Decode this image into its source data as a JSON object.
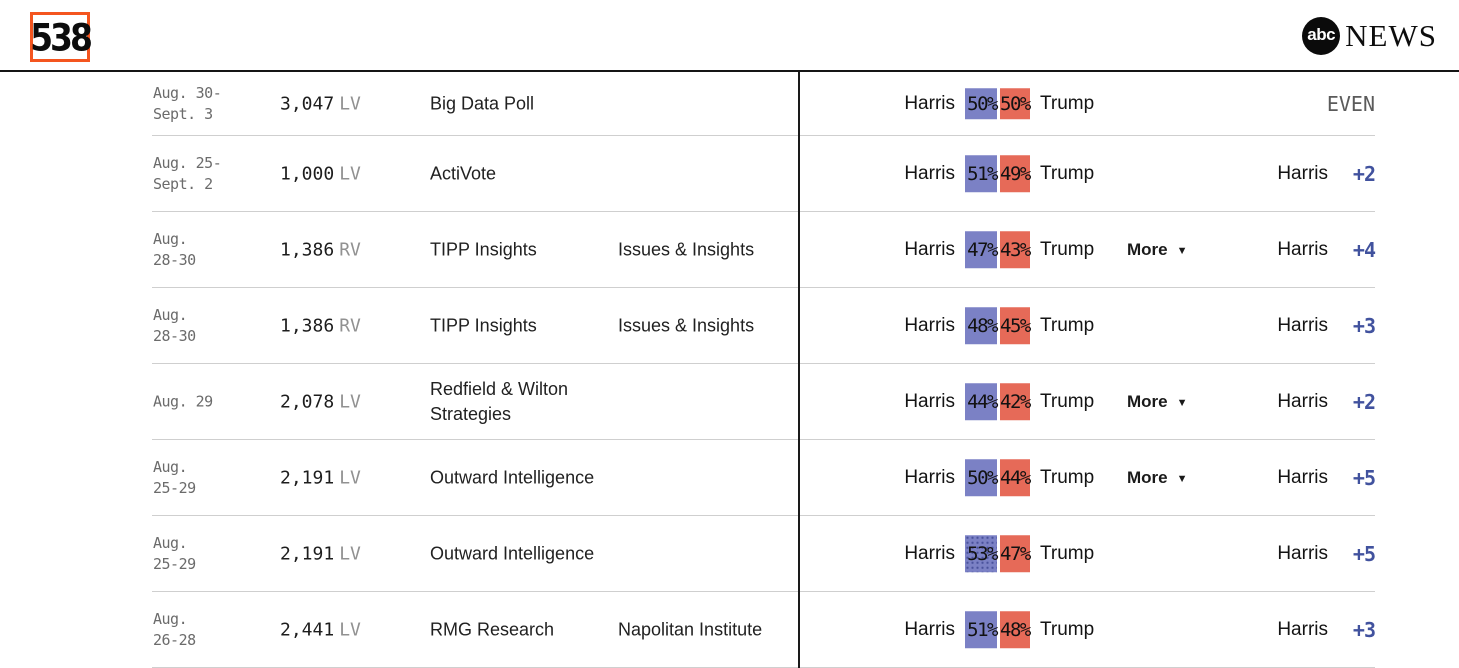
{
  "header": {
    "logo_538_text": "538",
    "abc_circle_text": "abc",
    "abc_news_text": "NEWS"
  },
  "icons": {
    "more_caret": "▼"
  },
  "colors": {
    "harris_bar": "#7b81c5",
    "trump_bar": "#e66a58",
    "result_accent": "#41529e",
    "logo_orange": "#f4551f"
  },
  "table": {
    "rows": [
      {
        "date": "Aug. 30-\nSept. 3",
        "sample_n": "3,047",
        "sample_type": "LV",
        "pollster": "Big Data Poll",
        "sponsor": "",
        "harris_label": "Harris",
        "harris_pct": "50%",
        "trump_pct": "50%",
        "trump_label": "Trump",
        "more_label": "",
        "result_label": "",
        "result_value": "EVEN",
        "harris_bar_dotted": false
      },
      {
        "date": "Aug. 25-\nSept. 2",
        "sample_n": "1,000",
        "sample_type": "LV",
        "pollster": "ActiVote",
        "sponsor": "",
        "harris_label": "Harris",
        "harris_pct": "51%",
        "trump_pct": "49%",
        "trump_label": "Trump",
        "more_label": "",
        "result_label": "Harris",
        "result_value": "+2",
        "harris_bar_dotted": false
      },
      {
        "date": "Aug.\n28-30",
        "sample_n": "1,386",
        "sample_type": "RV",
        "pollster": "TIPP Insights",
        "sponsor": "Issues & Insights",
        "harris_label": "Harris",
        "harris_pct": "47%",
        "trump_pct": "43%",
        "trump_label": "Trump",
        "more_label": "More",
        "result_label": "Harris",
        "result_value": "+4",
        "harris_bar_dotted": false
      },
      {
        "date": "Aug.\n28-30",
        "sample_n": "1,386",
        "sample_type": "RV",
        "pollster": "TIPP Insights",
        "sponsor": "Issues & Insights",
        "harris_label": "Harris",
        "harris_pct": "48%",
        "trump_pct": "45%",
        "trump_label": "Trump",
        "more_label": "",
        "result_label": "Harris",
        "result_value": "+3",
        "harris_bar_dotted": false
      },
      {
        "date": "Aug. 29",
        "sample_n": "2,078",
        "sample_type": "LV",
        "pollster": "Redfield & Wilton Strategies",
        "sponsor": "",
        "harris_label": "Harris",
        "harris_pct": "44%",
        "trump_pct": "42%",
        "trump_label": "Trump",
        "more_label": "More",
        "result_label": "Harris",
        "result_value": "+2",
        "harris_bar_dotted": false
      },
      {
        "date": "Aug.\n25-29",
        "sample_n": "2,191",
        "sample_type": "LV",
        "pollster": "Outward Intelligence",
        "sponsor": "",
        "harris_label": "Harris",
        "harris_pct": "50%",
        "trump_pct": "44%",
        "trump_label": "Trump",
        "more_label": "More",
        "result_label": "Harris",
        "result_value": "+5",
        "harris_bar_dotted": false
      },
      {
        "date": "Aug.\n25-29",
        "sample_n": "2,191",
        "sample_type": "LV",
        "pollster": "Outward Intelligence",
        "sponsor": "",
        "harris_label": "Harris",
        "harris_pct": "53%",
        "trump_pct": "47%",
        "trump_label": "Trump",
        "more_label": "",
        "result_label": "Harris",
        "result_value": "+5",
        "harris_bar_dotted": true
      },
      {
        "date": "Aug.\n26-28",
        "sample_n": "2,441",
        "sample_type": "LV",
        "pollster": "RMG Research",
        "sponsor": "Napolitan Institute",
        "harris_label": "Harris",
        "harris_pct": "51%",
        "trump_pct": "48%",
        "trump_label": "Trump",
        "more_label": "",
        "result_label": "Harris",
        "result_value": "+3",
        "harris_bar_dotted": false
      }
    ]
  }
}
